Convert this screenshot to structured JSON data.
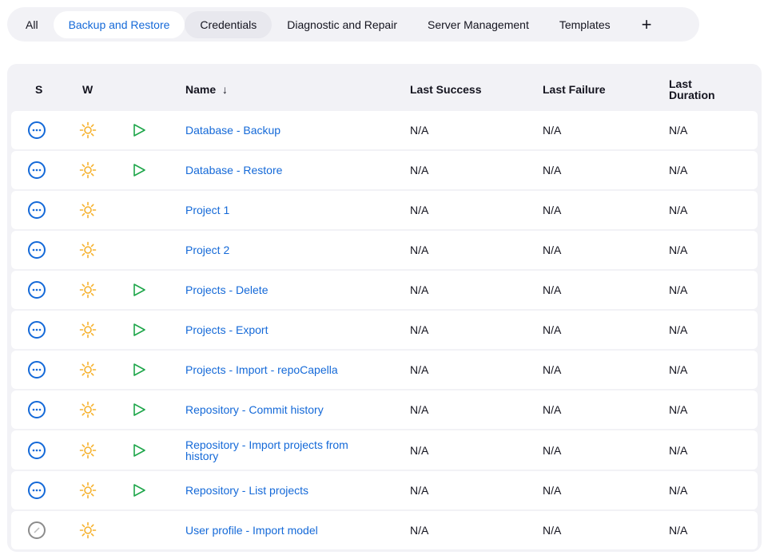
{
  "tabs": [
    {
      "label": "All",
      "state": "normal"
    },
    {
      "label": "Backup and Restore",
      "state": "active"
    },
    {
      "label": "Credentials",
      "state": "hover"
    },
    {
      "label": "Diagnostic and Repair",
      "state": "normal"
    },
    {
      "label": "Server Management",
      "state": "normal"
    },
    {
      "label": "Templates",
      "state": "normal"
    }
  ],
  "add_tab_label": "+",
  "columns": {
    "s": "S",
    "w": "W",
    "name": "Name",
    "sort_indicator": "↓",
    "last_success": "Last Success",
    "last_failure": "Last Failure",
    "last_duration": "Last Duration"
  },
  "colors": {
    "accent": "#1469d8",
    "weather": "#f6b12b",
    "play": "#1ea64a",
    "disabled": "#8c8c8c"
  },
  "jobs": [
    {
      "name": "Database - Backup",
      "status": "notbuilt-icon",
      "weather": "sun-icon",
      "runnable": true,
      "last_success": "N/A",
      "last_failure": "N/A",
      "last_duration": "N/A"
    },
    {
      "name": "Database - Restore",
      "status": "notbuilt-icon",
      "weather": "sun-icon",
      "runnable": true,
      "last_success": "N/A",
      "last_failure": "N/A",
      "last_duration": "N/A"
    },
    {
      "name": "Project 1",
      "status": "notbuilt-icon",
      "weather": "sun-icon",
      "runnable": false,
      "last_success": "N/A",
      "last_failure": "N/A",
      "last_duration": "N/A"
    },
    {
      "name": "Project 2",
      "status": "notbuilt-icon",
      "weather": "sun-icon",
      "runnable": false,
      "last_success": "N/A",
      "last_failure": "N/A",
      "last_duration": "N/A"
    },
    {
      "name": "Projects - Delete",
      "status": "notbuilt-icon",
      "weather": "sun-icon",
      "runnable": true,
      "last_success": "N/A",
      "last_failure": "N/A",
      "last_duration": "N/A"
    },
    {
      "name": "Projects - Export",
      "status": "notbuilt-icon",
      "weather": "sun-icon",
      "runnable": true,
      "last_success": "N/A",
      "last_failure": "N/A",
      "last_duration": "N/A"
    },
    {
      "name": "Projects - Import - repoCapella",
      "status": "notbuilt-icon",
      "weather": "sun-icon",
      "runnable": true,
      "last_success": "N/A",
      "last_failure": "N/A",
      "last_duration": "N/A"
    },
    {
      "name": "Repository - Commit history",
      "status": "notbuilt-icon",
      "weather": "sun-icon",
      "runnable": true,
      "last_success": "N/A",
      "last_failure": "N/A",
      "last_duration": "N/A"
    },
    {
      "name": "Repository - Import projects from history",
      "status": "notbuilt-icon",
      "weather": "sun-icon",
      "runnable": true,
      "last_success": "N/A",
      "last_failure": "N/A",
      "last_duration": "N/A"
    },
    {
      "name": "Repository - List projects",
      "status": "notbuilt-icon",
      "weather": "sun-icon",
      "runnable": true,
      "last_success": "N/A",
      "last_failure": "N/A",
      "last_duration": "N/A"
    },
    {
      "name": "User profile - Import model",
      "status": "disabled-icon",
      "weather": "sun-icon",
      "runnable": false,
      "last_success": "N/A",
      "last_failure": "N/A",
      "last_duration": "N/A"
    }
  ]
}
